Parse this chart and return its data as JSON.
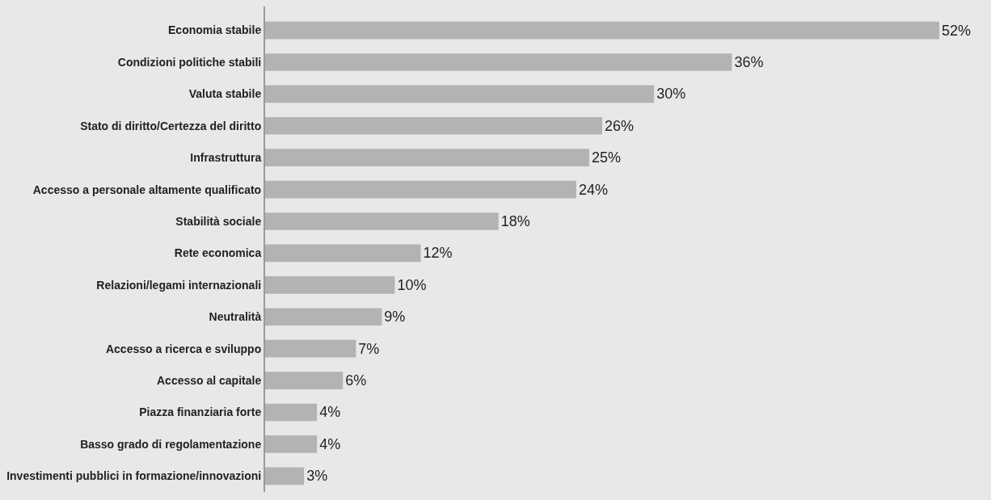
{
  "chart_data": {
    "type": "bar",
    "orientation": "horizontal",
    "categories": [
      "Economia stabile",
      "Condizioni politiche stabili",
      "Valuta stabile",
      "Stato di diritto/Certezza del diritto",
      "Infrastruttura",
      "Accesso a personale altamente qualificato",
      "Stabilità sociale",
      "Rete economica",
      "Relazioni/legami internazionali",
      "Neutralità",
      "Accesso a ricerca e sviluppo",
      "Accesso al capitale",
      "Piazza finanziaria forte",
      "Basso grado di regolamentazione",
      "Investimenti pubblici in formazione/innovazioni"
    ],
    "values": [
      52,
      36,
      30,
      26,
      25,
      24,
      18,
      12,
      10,
      9,
      7,
      6,
      4,
      4,
      3
    ],
    "value_labels": [
      "52%",
      "36%",
      "30%",
      "26%",
      "25%",
      "24%",
      "18%",
      "12%",
      "10%",
      "9%",
      "7%",
      "6%",
      "4%",
      "4%",
      "3%"
    ],
    "color": "#b3b3b3",
    "grid": false,
    "legend": false
  }
}
